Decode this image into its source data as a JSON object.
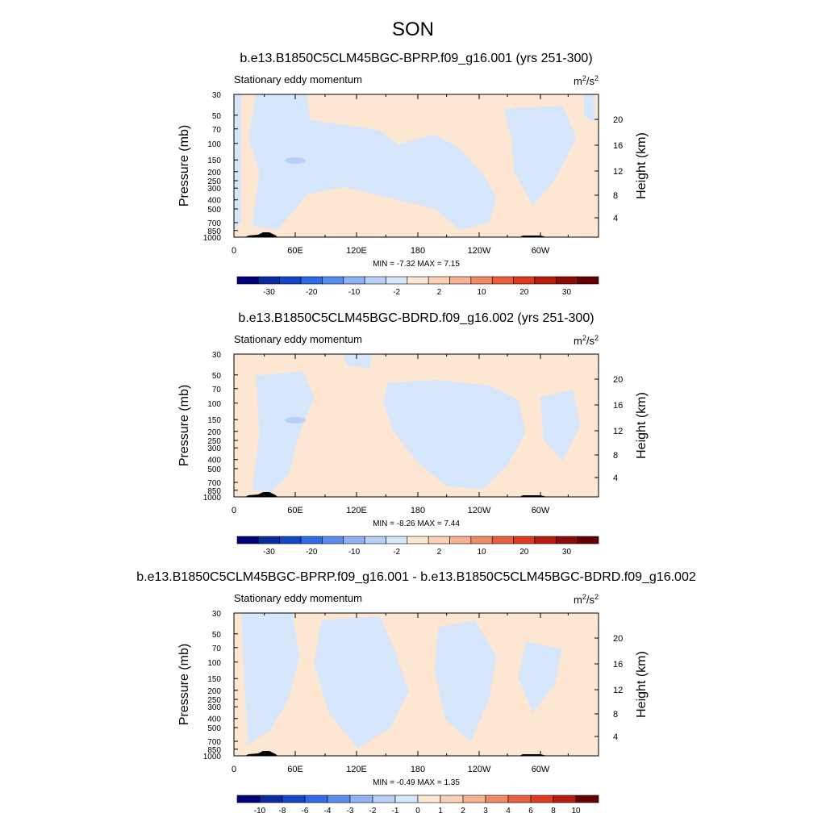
{
  "figure": {
    "title": "SON"
  },
  "chart_data": [
    {
      "type": "heatmap",
      "title": "b.e13.B1850C5CLM45BGC-BPRP.f09_g16.001 (yrs 251-300)",
      "left_label": "Stationary eddy momentum",
      "units": {
        "base": "m",
        "sup1": "2",
        "mid": "/s",
        "sup2": "2"
      },
      "ylabel": "Pressure (mb)",
      "y2label": "Height (km)",
      "x_ticks": [
        "0",
        "60E",
        "120E",
        "180",
        "120W",
        "60W"
      ],
      "y_ticks": [
        "30",
        "50",
        "70",
        "100",
        "150",
        "200",
        "250",
        "300",
        "400",
        "500",
        "700",
        "850",
        "1000"
      ],
      "y2_ticks": [
        "20",
        "16",
        "12",
        "8",
        "4"
      ],
      "stats": "MIN =  -7.32  MAX =   7.15",
      "colorbar": {
        "labels": [
          "-30",
          "-20",
          "-10",
          "-2",
          "2",
          "10",
          "20",
          "30"
        ],
        "colors": [
          "#00007a",
          "#0a2aa0",
          "#1446c8",
          "#2f6ae8",
          "#5a8cf0",
          "#8eb2f6",
          "#b8d0f7",
          "#d6e6fb",
          "#fde7d3",
          "#fbd0b4",
          "#f7b193",
          "#f18a66",
          "#ea5f3e",
          "#dd3a1f",
          "#b81d10",
          "#8d0c07",
          "#650000"
        ]
      },
      "field": {
        "pos_color": "#fde7d3",
        "neg_color": "#d6e6fb",
        "mid_neg_color": "#b8d0f7"
      }
    },
    {
      "type": "heatmap",
      "title": "b.e13.B1850C5CLM45BGC-BDRD.f09_g16.002 (yrs 251-300)",
      "left_label": "Stationary eddy momentum",
      "units": {
        "base": "m",
        "sup1": "2",
        "mid": "/s",
        "sup2": "2"
      },
      "ylabel": "Pressure (mb)",
      "y2label": "Height (km)",
      "x_ticks": [
        "0",
        "60E",
        "120E",
        "180",
        "120W",
        "60W"
      ],
      "y_ticks": [
        "30",
        "50",
        "70",
        "100",
        "150",
        "200",
        "250",
        "300",
        "400",
        "500",
        "700",
        "850",
        "1000"
      ],
      "y2_ticks": [
        "20",
        "16",
        "12",
        "8",
        "4"
      ],
      "stats": "MIN =  -8.26  MAX =   7.44",
      "colorbar": {
        "labels": [
          "-30",
          "-20",
          "-10",
          "-2",
          "2",
          "10",
          "20",
          "30"
        ],
        "colors": [
          "#00007a",
          "#0a2aa0",
          "#1446c8",
          "#2f6ae8",
          "#5a8cf0",
          "#8eb2f6",
          "#b8d0f7",
          "#d6e6fb",
          "#fde7d3",
          "#fbd0b4",
          "#f7b193",
          "#f18a66",
          "#ea5f3e",
          "#dd3a1f",
          "#b81d10",
          "#8d0c07",
          "#650000"
        ]
      },
      "field": {
        "pos_color": "#fde7d3",
        "neg_color": "#d6e6fb",
        "mid_neg_color": "#b8d0f7"
      }
    },
    {
      "type": "heatmap",
      "title": "b.e13.B1850C5CLM45BGC-BPRP.f09_g16.001 - b.e13.B1850C5CLM45BGC-BDRD.f09_g16.002",
      "left_label": "Stationary eddy momentum",
      "units": {
        "base": "m",
        "sup1": "2",
        "mid": "/s",
        "sup2": "2"
      },
      "ylabel": "Pressure (mb)",
      "y2label": "Height (km)",
      "x_ticks": [
        "0",
        "60E",
        "120E",
        "180",
        "120W",
        "60W"
      ],
      "y_ticks": [
        "30",
        "50",
        "70",
        "100",
        "150",
        "200",
        "250",
        "300",
        "400",
        "500",
        "700",
        "850",
        "1000"
      ],
      "y2_ticks": [
        "20",
        "16",
        "12",
        "8",
        "4"
      ],
      "stats": "MIN =  -0.49  MAX =   1.35",
      "colorbar": {
        "labels": [
          "-10",
          "-8",
          "-6",
          "-4",
          "-3",
          "-2",
          "-1",
          "0",
          "1",
          "2",
          "3",
          "4",
          "6",
          "8",
          "10"
        ],
        "colors": [
          "#00007a",
          "#0a2aa0",
          "#1446c8",
          "#2f6ae8",
          "#5a8cf0",
          "#8eb2f6",
          "#b8d0f7",
          "#d6e6fb",
          "#fde7d3",
          "#fbd0b4",
          "#f7b193",
          "#f18a66",
          "#ea5f3e",
          "#dd3a1f",
          "#b81d10",
          "#650000"
        ]
      },
      "field": {
        "pos_color": "#fde7d3",
        "neg_color": "#d6e6fb",
        "mid_neg_color": "#b8d0f7"
      }
    }
  ]
}
